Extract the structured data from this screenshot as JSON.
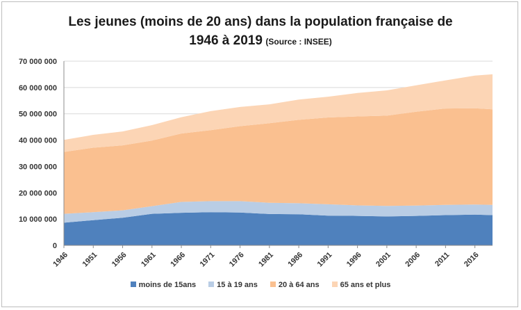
{
  "chart_data": {
    "type": "area",
    "stacked": true,
    "title_line1": "Les jeunes (moins de 20 ans) dans la population  française de",
    "title_line2": "1946 à 2019",
    "source": "(Source : INSEE)",
    "xlabel": "",
    "ylabel": "",
    "x_range": [
      1946,
      2019
    ],
    "ylim": [
      0,
      70000000
    ],
    "y_ticks": [
      0,
      10000000,
      20000000,
      30000000,
      40000000,
      50000000,
      60000000,
      70000000
    ],
    "y_tick_labels": [
      "0",
      "10 000 000",
      "20 000 000",
      "30 000 000",
      "40 000 000",
      "50 000 000",
      "60 000 000",
      "70 000 000"
    ],
    "x_ticks": [
      1946,
      1951,
      1956,
      1961,
      1966,
      1971,
      1976,
      1981,
      1986,
      1991,
      1996,
      2001,
      2006,
      2011,
      2016
    ],
    "x_tick_labels": [
      "1946",
      "1951",
      "1956",
      "1961",
      "1966",
      "1971",
      "1976",
      "1981",
      "1986",
      "1991",
      "1996",
      "2001",
      "2006",
      "2011",
      "2016"
    ],
    "grid": true,
    "legend_position": "bottom",
    "x": [
      1946,
      1951,
      1956,
      1961,
      1966,
      1971,
      1976,
      1981,
      1986,
      1991,
      1996,
      2001,
      2006,
      2011,
      2016,
      2019
    ],
    "series": [
      {
        "name": "moins de 15ans",
        "color": "#4f81bd",
        "values": [
          8600000,
          9600000,
          10500000,
          12000000,
          12400000,
          12600000,
          12500000,
          11900000,
          11800000,
          11300000,
          11200000,
          11000000,
          11200000,
          11500000,
          11700000,
          11500000
        ]
      },
      {
        "name": "15 à 19 ans",
        "color": "#b9cde5",
        "values": [
          3400000,
          3000000,
          2800000,
          2900000,
          4100000,
          4200000,
          4300000,
          4300000,
          4200000,
          4300000,
          4000000,
          4000000,
          3900000,
          3900000,
          3800000,
          3900000
        ]
      },
      {
        "name": "20 à 64 ans",
        "color": "#fac090",
        "values": [
          23500000,
          24500000,
          24700000,
          24900000,
          26000000,
          27000000,
          28500000,
          30200000,
          31700000,
          33000000,
          33800000,
          34300000,
          35700000,
          36600000,
          36600000,
          36300000
        ]
      },
      {
        "name": "65 ans et plus",
        "color": "#fcd5b5",
        "values": [
          4600000,
          4900000,
          5300000,
          5900000,
          6200000,
          7200000,
          7300000,
          7200000,
          7700000,
          7900000,
          8900000,
          9600000,
          10000000,
          10700000,
          12400000,
          13300000
        ]
      }
    ]
  }
}
